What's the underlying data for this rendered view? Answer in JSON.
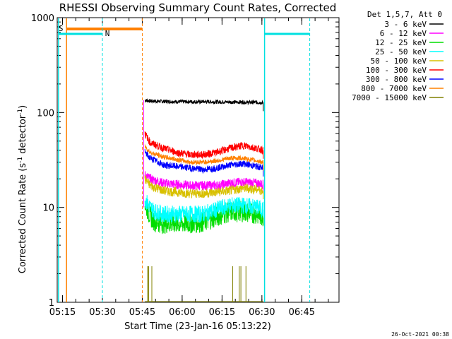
{
  "chart_data": {
    "type": "line",
    "title": "RHESSI Observing Summary Count Rates, Corrected",
    "xlabel": "Start Time (23-Jan-16 05:13:22)",
    "ylabel_main": "Corrected Count Rate (s",
    "ylabel_sup1": "-1",
    "ylabel_mid": " detector",
    "ylabel_sup2": "-1",
    "ylabel_end": ")",
    "yscale": "log",
    "ylim": [
      1,
      1000
    ],
    "xlim_min": [
      0,
      106
    ],
    "x_ticks": [
      "05:15",
      "05:30",
      "05:45",
      "06:00",
      "06:15",
      "06:30",
      "06:45"
    ],
    "x_tick_min": [
      2,
      17,
      32,
      47,
      62,
      77,
      92
    ],
    "y_ticks": [
      "1",
      "10",
      "100",
      "1000"
    ],
    "y_tick_val": [
      1,
      10,
      100,
      1000
    ],
    "legend_title": "Det 1,5,7, Att 0",
    "legend_position": "top-right",
    "flags": [
      {
        "label": "S",
        "color": "#ff8000"
      },
      {
        "label": "N",
        "color": "#00e0e0"
      }
    ],
    "footer_timestamp": "26-Oct-2021 00:38",
    "data_window_min": [
      32,
      78
    ],
    "series": [
      {
        "name": "3 - 6 keV",
        "color": "#000000",
        "x": [
          33,
          35,
          45,
          55,
          65,
          75,
          77.5
        ],
        "y": [
          135,
          132,
          130,
          130,
          129,
          128,
          127
        ]
      },
      {
        "name": "6 - 12 keV",
        "color": "#ff00ff",
        "x": [
          33,
          35,
          40,
          45,
          50,
          55,
          60,
          65,
          70,
          75,
          77.5
        ],
        "y": [
          22,
          20,
          18,
          17.5,
          17,
          17,
          17,
          18,
          18.5,
          18,
          17.5
        ]
      },
      {
        "name": "12 - 25 keV",
        "color": "#00dd00",
        "x": [
          33,
          35,
          37,
          40,
          45,
          50,
          55,
          60,
          65,
          70,
          75,
          77.5
        ],
        "y": [
          11,
          8,
          7,
          6.8,
          6.8,
          6.8,
          7,
          8,
          9,
          9,
          8.5,
          8
        ]
      },
      {
        "name": "25 - 50 keV",
        "color": "#00ffff",
        "x": [
          33,
          35,
          37,
          40,
          45,
          50,
          55,
          60,
          65,
          70,
          75,
          77.5
        ],
        "y": [
          12,
          10,
          9,
          8.5,
          8.5,
          8.5,
          8.5,
          9.5,
          10.5,
          10.5,
          10,
          9.5
        ]
      },
      {
        "name": "50 - 100 keV",
        "color": "#d8c000",
        "x": [
          33,
          35,
          40,
          45,
          50,
          55,
          60,
          65,
          70,
          75,
          77.5
        ],
        "y": [
          20,
          17,
          15,
          14.5,
          14,
          14,
          14.5,
          15,
          16,
          15.5,
          15
        ]
      },
      {
        "name": "100 - 300 keV",
        "color": "#ff0000",
        "x": [
          33,
          35,
          40,
          45,
          50,
          55,
          60,
          65,
          70,
          75,
          77.5
        ],
        "y": [
          60,
          48,
          42,
          38,
          36,
          36,
          38,
          42,
          45,
          42,
          40
        ]
      },
      {
        "name": "300 - 800 keV",
        "color": "#0000ff",
        "x": [
          33,
          35,
          40,
          45,
          50,
          55,
          60,
          65,
          70,
          75,
          77.5
        ],
        "y": [
          38,
          33,
          28,
          27,
          26,
          25,
          26,
          28,
          29,
          27,
          26
        ]
      },
      {
        "name": "800 - 7000 keV",
        "color": "#ff8000",
        "x": [
          33,
          35,
          40,
          45,
          50,
          55,
          60,
          65,
          70,
          75,
          77.5
        ],
        "y": [
          44,
          38,
          34,
          32,
          30,
          30,
          31,
          33,
          33,
          31,
          30
        ]
      },
      {
        "name": "7000 - 15000 keV",
        "color": "#808000",
        "x": [
          33,
          35,
          65,
          70,
          77.5
        ],
        "y": [
          1,
          1,
          1,
          1,
          1
        ]
      }
    ]
  }
}
